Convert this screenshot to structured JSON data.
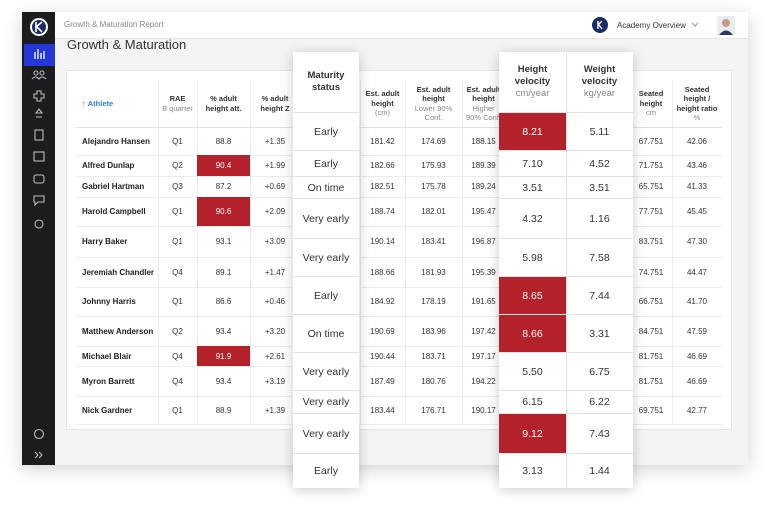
{
  "topbar": {
    "report": "Growth & Maturation Report",
    "account": "Academy Overview"
  },
  "title": "Growth & Maturation",
  "table": {
    "columns": [
      {
        "title": "Athlete"
      },
      {
        "title": "RAE",
        "sub": "B quarter"
      },
      {
        "title": "% adult height att."
      },
      {
        "title": "% adult height Z"
      },
      {
        "title": "Est. adult height",
        "sub": "(cm)"
      },
      {
        "title": "Est. adult height",
        "sub": "Lower 90% Conf."
      },
      {
        "title": "Est. adult height",
        "sub": "Higher 90% Conf."
      },
      {
        "title": "Seated height",
        "sub": "cm"
      },
      {
        "title": "Seated height / height ratio",
        "sub": "%"
      }
    ],
    "rows": [
      [
        "Alejandro Hansen",
        "Q1",
        "88.8",
        "+1.35",
        "181.42",
        "174.69",
        "188.15",
        "67.751",
        "42.06"
      ],
      [
        "Alfred Dunlap",
        "Q2",
        "90.4",
        "+1.99",
        "182.66",
        "175.93",
        "189.39",
        "71.751",
        "43.46"
      ],
      [
        "Gabriel Hartman",
        "Q3",
        "87.2",
        "+0.69",
        "182.51",
        "175.78",
        "189.24",
        "65.751",
        "41.33"
      ],
      [
        "Harold Campbell",
        "Q1",
        "90.6",
        "+2.09",
        "188.74",
        "182.01",
        "195.47",
        "77.751",
        "45.45"
      ],
      [
        "Harry Baker",
        "Q1",
        "93.1",
        "+3.09",
        "190.14",
        "183.41",
        "196.87",
        "83.751",
        "47.30"
      ],
      [
        "Jeremiah Chandler",
        "Q4",
        "89.1",
        "+1.47",
        "188.66",
        "181.93",
        "195.39",
        "74.751",
        "44.47"
      ],
      [
        "Johnny Harris",
        "Q1",
        "86.6",
        "+0.46",
        "184.92",
        "178.19",
        "191.65",
        "66.751",
        "41.70"
      ],
      [
        "Matthew Anderson",
        "Q2",
        "93.4",
        "+3.20",
        "190.69",
        "183.96",
        "197.42",
        "84.751",
        "47.59"
      ],
      [
        "Michael Blair",
        "Q4",
        "91.9",
        "+2.61",
        "190.44",
        "183.71",
        "197.17",
        "81.751",
        "46.69"
      ],
      [
        "Myron Barrett",
        "Q4",
        "93.4",
        "+3.19",
        "187.49",
        "180.76",
        "194.22",
        "81.751",
        "46.69"
      ],
      [
        "Nick Gardner",
        "Q1",
        "88.9",
        "+1.39",
        "183.44",
        "176.71",
        "190.17",
        "69.751",
        "42.77"
      ]
    ],
    "highlighted_cells": [
      [
        1,
        2
      ],
      [
        3,
        2
      ],
      [
        8,
        2
      ]
    ],
    "highlight_color": "#b3212a"
  },
  "maturity_card": {
    "title": "Maturity status",
    "values": [
      "Early",
      "Early",
      "On time",
      "Very early",
      "Very early",
      "Early",
      "On time",
      "Very early",
      "Very early",
      "Very early",
      "Early"
    ]
  },
  "velocity_card": {
    "columns": [
      {
        "title": "Height velocity",
        "unit": "cm/year"
      },
      {
        "title": "Weight velocity",
        "unit": "kg/year"
      }
    ],
    "rows": [
      [
        "8.21",
        "5.11"
      ],
      [
        "7.10",
        "4.52"
      ],
      [
        "3.51",
        "3.51"
      ],
      [
        "4.32",
        "1.16"
      ],
      [
        "5.98",
        "7.58"
      ],
      [
        "8.65",
        "7.44"
      ],
      [
        "8.66",
        "3.31"
      ],
      [
        "5.50",
        "6.75"
      ],
      [
        "6.15",
        "6.22"
      ],
      [
        "9.12",
        "7.43"
      ],
      [
        "3.13",
        "1.44"
      ]
    ],
    "highlighted_cells": [
      [
        0,
        0
      ],
      [
        5,
        0
      ],
      [
        6,
        0
      ],
      [
        9,
        0
      ]
    ],
    "highlight_color": "#b3212a"
  }
}
